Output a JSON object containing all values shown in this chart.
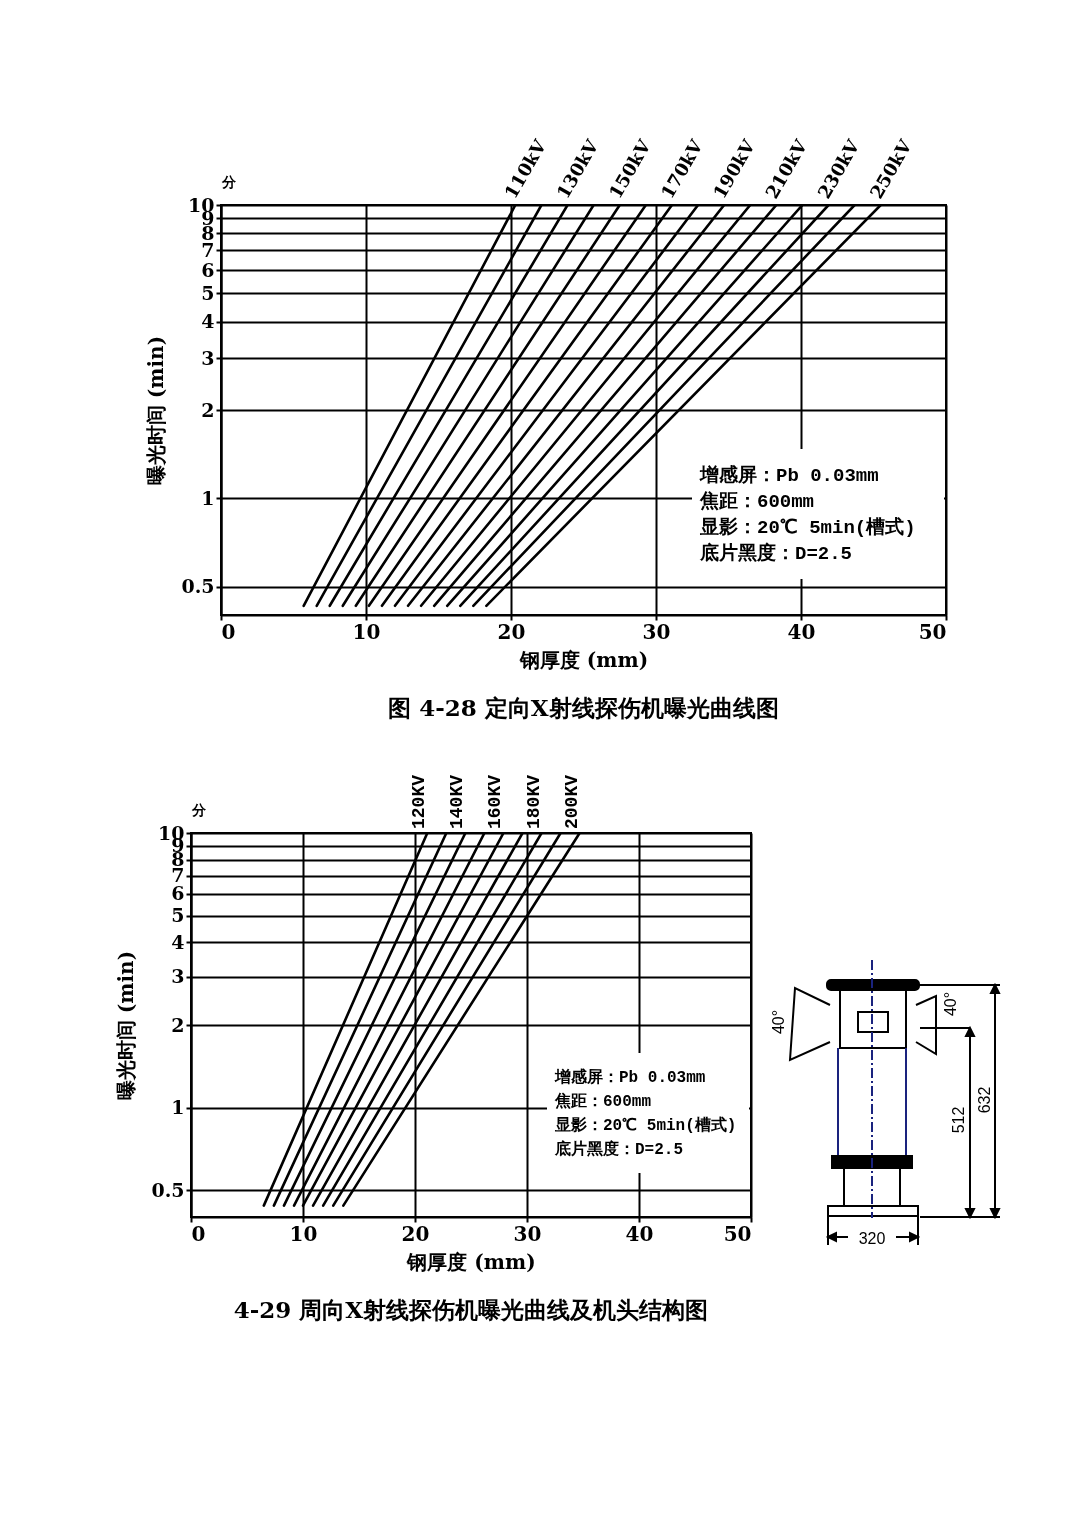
{
  "chart_data": [
    {
      "type": "line",
      "title": "图 4-28 定向X射线探伤机曝光曲线图",
      "xlabel": "钢厚度 (mm)",
      "ylabel": "曝光时间 (min)",
      "log": true,
      "grid": true,
      "xlim": [
        0,
        50
      ],
      "xticks": [
        0,
        10,
        20,
        30,
        40,
        50
      ],
      "ylim": [
        0.4,
        10
      ],
      "yticks": [
        0.5,
        1,
        2,
        3,
        4,
        5,
        6,
        7,
        8,
        9,
        10
      ],
      "annotations": [
        "分",
        "增感屏：Pb 0.03mm",
        "焦距：600mm",
        "显影：20℃ 5min(槽式)",
        "底片黑度：D=2.5"
      ],
      "series": [
        {
          "name": "110kV",
          "color": "#000000",
          "x": [
            5.7,
            20.3
          ],
          "values": [
            0.43,
            10
          ]
        },
        {
          "color": "#000000",
          "x": [
            6.6,
            22.1
          ],
          "values": [
            0.43,
            10
          ]
        },
        {
          "name": "130kV",
          "color": "#000000",
          "x": [
            7.5,
            23.9
          ],
          "values": [
            0.43,
            10
          ]
        },
        {
          "color": "#000000",
          "x": [
            8.4,
            25.7
          ],
          "values": [
            0.43,
            10
          ]
        },
        {
          "name": "150kV",
          "color": "#000000",
          "x": [
            9.3,
            27.5
          ],
          "values": [
            0.43,
            10
          ]
        },
        {
          "color": "#000000",
          "x": [
            10.2,
            29.3
          ],
          "values": [
            0.43,
            10
          ]
        },
        {
          "name": "170kV",
          "color": "#000000",
          "x": [
            11.1,
            31.1
          ],
          "values": [
            0.43,
            10
          ]
        },
        {
          "color": "#000000",
          "x": [
            12.0,
            32.9
          ],
          "values": [
            0.43,
            10
          ]
        },
        {
          "name": "190kV",
          "color": "#000000",
          "x": [
            12.9,
            34.7
          ],
          "values": [
            0.43,
            10
          ]
        },
        {
          "color": "#000000",
          "x": [
            13.8,
            36.5
          ],
          "values": [
            0.43,
            10
          ]
        },
        {
          "name": "210kV",
          "color": "#000000",
          "x": [
            14.7,
            38.3
          ],
          "values": [
            0.43,
            10
          ]
        },
        {
          "color": "#000000",
          "x": [
            15.6,
            40.1
          ],
          "values": [
            0.43,
            10
          ]
        },
        {
          "name": "230kV",
          "color": "#000000",
          "x": [
            16.5,
            41.9
          ],
          "values": [
            0.43,
            10
          ]
        },
        {
          "color": "#000000",
          "x": [
            17.4,
            43.7
          ],
          "values": [
            0.43,
            10
          ]
        },
        {
          "name": "250kV",
          "color": "#000000",
          "x": [
            18.3,
            45.5
          ],
          "values": [
            0.43,
            10
          ]
        }
      ]
    },
    {
      "type": "line",
      "title": "4-29 周向X射线探伤机曝光曲线及机头结构图",
      "xlabel": "钢厚度 (mm)",
      "ylabel": "曝光时间 (min)",
      "log": true,
      "grid": true,
      "xlim": [
        0,
        50
      ],
      "xticks": [
        0,
        10,
        20,
        30,
        40,
        50
      ],
      "ylim": [
        0.4,
        10
      ],
      "yticks": [
        0.5,
        1,
        2,
        3,
        4,
        5,
        6,
        7,
        8,
        9,
        10
      ],
      "annotations": [
        "分",
        "增感屏：Pb 0.03mm",
        "焦距：600mm",
        "显影：20℃ 5min(槽式)",
        "底片黑度：D=2.5"
      ],
      "series": [
        {
          "name": "120KV",
          "color": "#000000",
          "x": [
            6.5,
            21.1
          ],
          "values": [
            0.44,
            10
          ]
        },
        {
          "color": "#000000",
          "x": [
            7.4,
            22.8
          ],
          "values": [
            0.44,
            10
          ]
        },
        {
          "name": "140KV",
          "color": "#000000",
          "x": [
            8.3,
            24.5
          ],
          "values": [
            0.44,
            10
          ]
        },
        {
          "color": "#000000",
          "x": [
            9.2,
            26.2
          ],
          "values": [
            0.44,
            10
          ]
        },
        {
          "name": "160KV",
          "color": "#000000",
          "x": [
            10.0,
            27.9
          ],
          "values": [
            0.44,
            10
          ]
        },
        {
          "color": "#000000",
          "x": [
            10.9,
            29.6
          ],
          "values": [
            0.44,
            10
          ]
        },
        {
          "name": "180KV",
          "color": "#000000",
          "x": [
            11.8,
            31.3
          ],
          "values": [
            0.44,
            10
          ]
        },
        {
          "color": "#000000",
          "x": [
            12.7,
            33.0
          ],
          "values": [
            0.44,
            10
          ]
        },
        {
          "name": "200KV",
          "color": "#000000",
          "x": [
            13.6,
            34.7
          ],
          "values": [
            0.44,
            10
          ]
        }
      ]
    },
    {
      "type": "other",
      "annotations": [
        "40°",
        "40°",
        "512",
        "632",
        "320"
      ]
    }
  ]
}
